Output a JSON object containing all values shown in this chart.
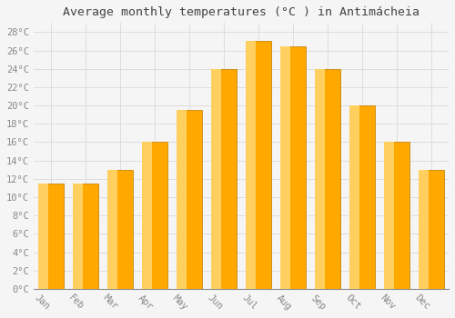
{
  "title": "Average monthly temperatures (°C ) in Antimácheia",
  "months": [
    "Jan",
    "Feb",
    "Mar",
    "Apr",
    "May",
    "Jun",
    "Jul",
    "Aug",
    "Sep",
    "Oct",
    "Nov",
    "Dec"
  ],
  "values": [
    11.5,
    11.5,
    13.0,
    16.0,
    19.5,
    24.0,
    27.0,
    26.5,
    24.0,
    20.0,
    16.0,
    13.0
  ],
  "bar_color_main": "#FFA800",
  "bar_color_light": "#FFD060",
  "bar_color_dark": "#E08000",
  "bar_edge_color": "#C8870A",
  "background_color": "#f5f5f5",
  "plot_bg_color": "#f5f5f5",
  "grid_color": "#dddddd",
  "ylim": [
    0,
    29
  ],
  "ytick_step": 2,
  "title_fontsize": 9.5,
  "tick_fontsize": 7.5,
  "title_color": "#444444",
  "tick_color": "#888888",
  "xlabel_rotation": -45
}
